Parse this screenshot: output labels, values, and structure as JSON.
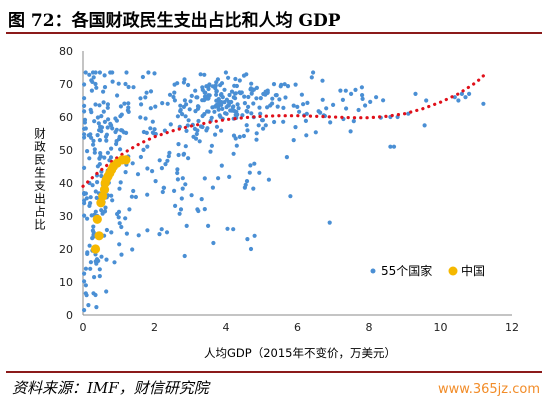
{
  "figure": {
    "title": "图 72：各国财政民生支出占比和人均 GDP",
    "source": "资料来源：IMF，财信研究院",
    "watermark": "www.365jz.com"
  },
  "colors": {
    "countries": "#4a8fd4",
    "china": "#f5b800",
    "trend": "#e0101a",
    "rule": "#8b1a1a"
  },
  "chart_data": {
    "type": "scatter",
    "title": "",
    "xlabel": "人均GDP（2015年不变价，万美元）",
    "ylabel": "财政民生支出占比",
    "xlim": [
      0,
      12
    ],
    "ylim": [
      0,
      80
    ],
    "xticks": [
      0,
      2,
      4,
      6,
      8,
      10,
      12
    ],
    "yticks": [
      0,
      10,
      20,
      30,
      40,
      50,
      60,
      70,
      80
    ],
    "grid": false,
    "legend_position": "bottom-right",
    "series": [
      {
        "name": "55个国家",
        "marker": "dot",
        "clusters": [
          {
            "cx": 4.0,
            "cy": 66,
            "sx": 0.7,
            "sy": 3.5,
            "n": 130
          },
          {
            "cx": 2.0,
            "cy": 58,
            "sx": 1.0,
            "sy": 7,
            "n": 110
          },
          {
            "cx": 0.6,
            "cy": 48,
            "sx": 0.35,
            "sy": 15,
            "n": 110
          },
          {
            "cx": 0.3,
            "cy": 20,
            "sx": 0.2,
            "sy": 10,
            "n": 40
          },
          {
            "cx": 2.5,
            "cy": 38,
            "sx": 1.3,
            "sy": 9,
            "n": 60
          },
          {
            "cx": 5.5,
            "cy": 60,
            "sx": 1.0,
            "sy": 6,
            "n": 50
          },
          {
            "cx": 7.5,
            "cy": 63,
            "sx": 1.0,
            "sy": 3,
            "n": 20
          }
        ],
        "points": [
          [
            0.3,
            72
          ],
          [
            0.35,
            70
          ],
          [
            0.25,
            68
          ],
          [
            6.7,
            71
          ],
          [
            6.4,
            72
          ],
          [
            7.2,
            68
          ],
          [
            7.8,
            69
          ],
          [
            7.5,
            67
          ],
          [
            8.2,
            66
          ],
          [
            8.6,
            60
          ],
          [
            8.6,
            51
          ],
          [
            8.7,
            51
          ],
          [
            8.8,
            60
          ],
          [
            9.1,
            61
          ],
          [
            9.3,
            67
          ],
          [
            9.6,
            65
          ],
          [
            10.4,
            66
          ],
          [
            10.5,
            65
          ],
          [
            10.6,
            67
          ],
          [
            10.7,
            66
          ],
          [
            10.8,
            67
          ],
          [
            11.2,
            64
          ],
          [
            6.9,
            28
          ],
          [
            4.7,
            20
          ],
          [
            4.6,
            23
          ],
          [
            4.8,
            24
          ],
          [
            3.5,
            27
          ],
          [
            2.9,
            27
          ],
          [
            2.2,
            26
          ],
          [
            0.15,
            3
          ],
          [
            0.1,
            6
          ],
          [
            0.08,
            9
          ],
          [
            0.2,
            14
          ],
          [
            0.22,
            16
          ],
          [
            0.12,
            19
          ],
          [
            0.3,
            25
          ],
          [
            0.4,
            30
          ],
          [
            0.18,
            40
          ],
          [
            4.2,
            26
          ],
          [
            5.2,
            41
          ],
          [
            5.8,
            36
          ],
          [
            3.2,
            32
          ]
        ]
      },
      {
        "name": "中国",
        "marker": "dot",
        "points": [
          [
            0.35,
            20
          ],
          [
            0.45,
            24
          ],
          [
            0.4,
            29
          ],
          [
            0.5,
            34
          ],
          [
            0.55,
            36
          ],
          [
            0.6,
            38
          ],
          [
            0.62,
            40
          ],
          [
            0.65,
            41
          ],
          [
            0.7,
            42
          ],
          [
            0.75,
            43
          ],
          [
            0.8,
            44
          ],
          [
            0.85,
            45
          ],
          [
            0.95,
            46
          ],
          [
            1.1,
            47
          ],
          [
            1.2,
            47
          ]
        ]
      }
    ],
    "trendline": {
      "style": "dotted",
      "points": [
        [
          0,
          39
        ],
        [
          0.4,
          43
        ],
        [
          0.8,
          46.5
        ],
        [
          1.2,
          49.5
        ],
        [
          1.6,
          52
        ],
        [
          2.0,
          54
        ],
        [
          2.5,
          55.8
        ],
        [
          3.0,
          57.2
        ],
        [
          3.5,
          58.3
        ],
        [
          4.0,
          59.2
        ],
        [
          4.5,
          59.8
        ],
        [
          5.0,
          60.2
        ],
        [
          5.5,
          60.4
        ],
        [
          6.0,
          60.4
        ],
        [
          6.5,
          60.2
        ],
        [
          7.0,
          60
        ],
        [
          7.5,
          59.8
        ],
        [
          8.0,
          59.8
        ],
        [
          8.5,
          60.2
        ],
        [
          9.0,
          61
        ],
        [
          9.5,
          62.5
        ],
        [
          10.0,
          64.5
        ],
        [
          10.5,
          67
        ],
        [
          11.0,
          70.5
        ],
        [
          11.2,
          72.5
        ]
      ]
    }
  }
}
